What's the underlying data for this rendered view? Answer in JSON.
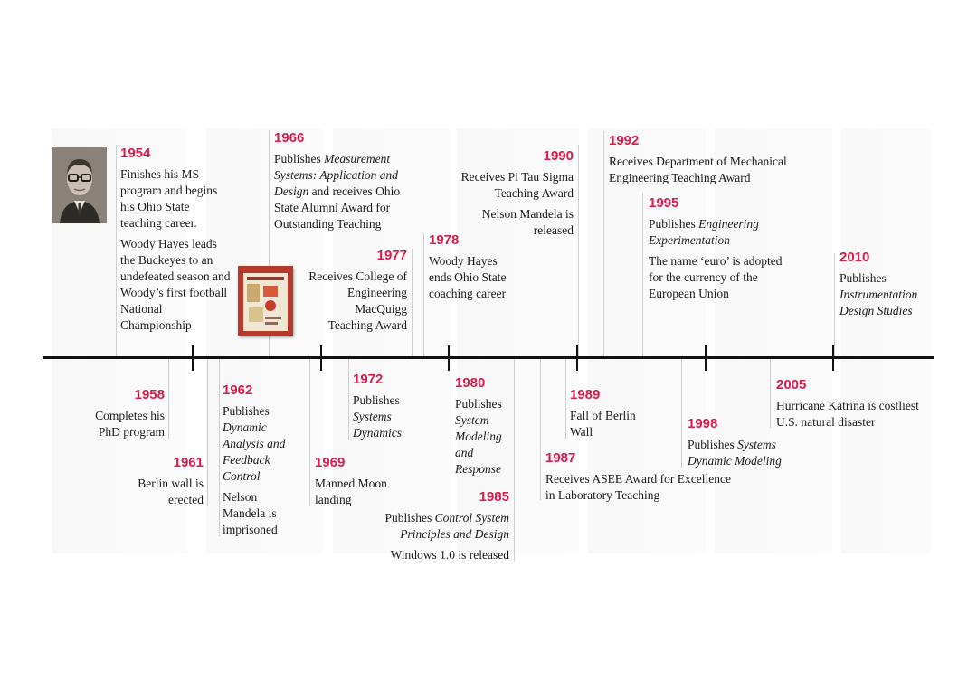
{
  "events": {
    "e1954": {
      "year": "1954",
      "lines": [
        "Finishes his MS program and begins his Ohio State teaching career.",
        "Woody Hayes leads the Buckeyes to an undefeated season and Woody’s first football National Championship"
      ]
    },
    "e1958": {
      "year": "1958",
      "lines": [
        "Completes his PhD program"
      ]
    },
    "e1961": {
      "year": "1961",
      "lines": [
        "Berlin wall is erected"
      ]
    },
    "e1962": {
      "year": "1962",
      "intro": "Publishes ",
      "title": "Dynamic Analysis and Feedback Control",
      "note": "Nelson Mandela is imprisoned"
    },
    "e1966": {
      "year": "1966",
      "intro": "Publishes ",
      "title": "Measurement Systems: Application and Design",
      "rest": " and receives Ohio State Alumni Award for Outstanding Teaching"
    },
    "e1969": {
      "year": "1969",
      "lines": [
        "Manned Moon landing"
      ]
    },
    "e1972": {
      "year": "1972",
      "intro": "Publishes ",
      "title": "Systems Dynamics"
    },
    "e1977": {
      "year": "1977",
      "lines": [
        "Receives College of Engineering MacQuigg Teaching Award"
      ]
    },
    "e1978": {
      "year": "1978",
      "lines": [
        "Woody Hayes ends Ohio State coaching career"
      ]
    },
    "e1980": {
      "year": "1980",
      "intro": "Publishes ",
      "title": "System Modeling and Response"
    },
    "e1985": {
      "year": "1985",
      "intro": "Publishes ",
      "title": "Control System Principles and Design",
      "note": "Windows 1.0 is released"
    },
    "e1987": {
      "year": "1987",
      "lines": [
        "Receives ASEE Award for Excellence in Laboratory Teaching"
      ]
    },
    "e1989": {
      "year": "1989",
      "lines": [
        "Fall of Berlin Wall"
      ]
    },
    "e1990": {
      "year": "1990",
      "lines": [
        "Receives Pi Tau Sigma Teaching Award",
        "Nelson Mandela is released"
      ]
    },
    "e1992": {
      "year": "1992",
      "lines": [
        "Receives Department of Mechanical Engineering Teaching Award"
      ]
    },
    "e1995": {
      "year": "1995",
      "intro": "Publishes ",
      "title": "Engineering Experimentation",
      "note": "The name ‘euro’ is adopted for the currency of the European Union"
    },
    "e1998": {
      "year": "1998",
      "intro": "Publishes ",
      "title": "Systems Dynamic Modeling"
    },
    "e2005": {
      "year": "2005",
      "lines": [
        "Hurricane Katrina is costliest U.S. natural disaster"
      ]
    },
    "e2010": {
      "year": "2010",
      "intro": "Publishes ",
      "title": "Instrumentation Design Studies"
    }
  },
  "colors": {
    "accent": "#d81b4a",
    "axis": "#111111",
    "book": "#b53a2c"
  },
  "images": {
    "portrait": "portrait-photo",
    "book": "book-cover"
  }
}
